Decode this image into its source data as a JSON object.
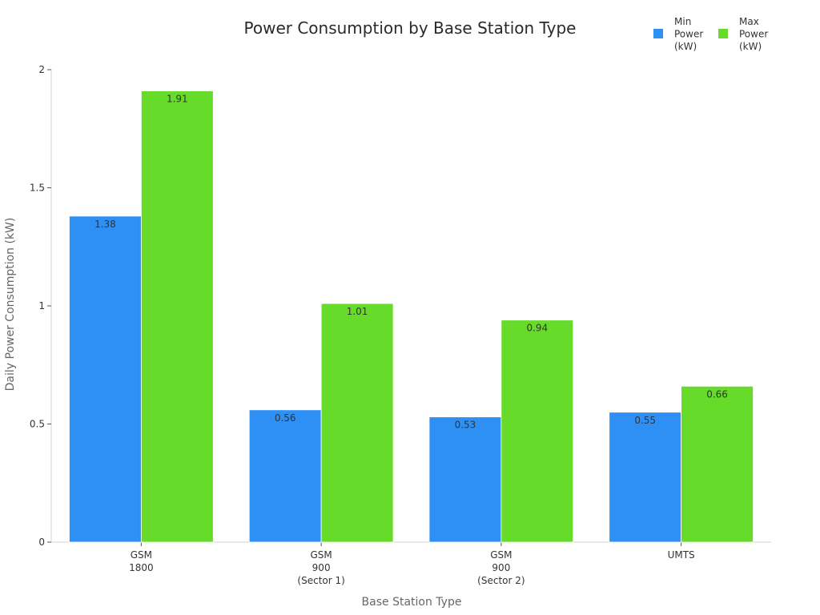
{
  "chart_data": {
    "type": "bar",
    "title": "Power Consumption by Base Station Type",
    "xlabel": "Base Station Type",
    "ylabel": "Daily Power Consumption (kW)",
    "categories": [
      [
        "GSM",
        "1800"
      ],
      [
        "GSM",
        "900",
        "(Sector 1)"
      ],
      [
        "GSM",
        "900",
        "(Sector 2)"
      ],
      [
        "UMTS"
      ]
    ],
    "series": [
      {
        "name": [
          "Min",
          "Power",
          "(kW)"
        ],
        "color": "#2e90f5",
        "values": [
          1.38,
          0.56,
          0.53,
          0.55
        ]
      },
      {
        "name": [
          "Max",
          "Power",
          "(kW)"
        ],
        "color": "#66db29",
        "values": [
          1.91,
          1.01,
          0.94,
          0.66
        ]
      }
    ],
    "ylim": [
      0,
      2
    ],
    "yticks": [
      0,
      0.5,
      1,
      1.5,
      2
    ],
    "ytick_labels": [
      "0",
      "0.5",
      "1",
      "1.5",
      "2"
    ],
    "value_labels": [
      [
        "1.38",
        "0.56",
        "0.53",
        "0.55"
      ],
      [
        "1.91",
        "1.01",
        "0.94",
        "0.66"
      ]
    ],
    "legend_position": "top-right",
    "grid": false
  }
}
